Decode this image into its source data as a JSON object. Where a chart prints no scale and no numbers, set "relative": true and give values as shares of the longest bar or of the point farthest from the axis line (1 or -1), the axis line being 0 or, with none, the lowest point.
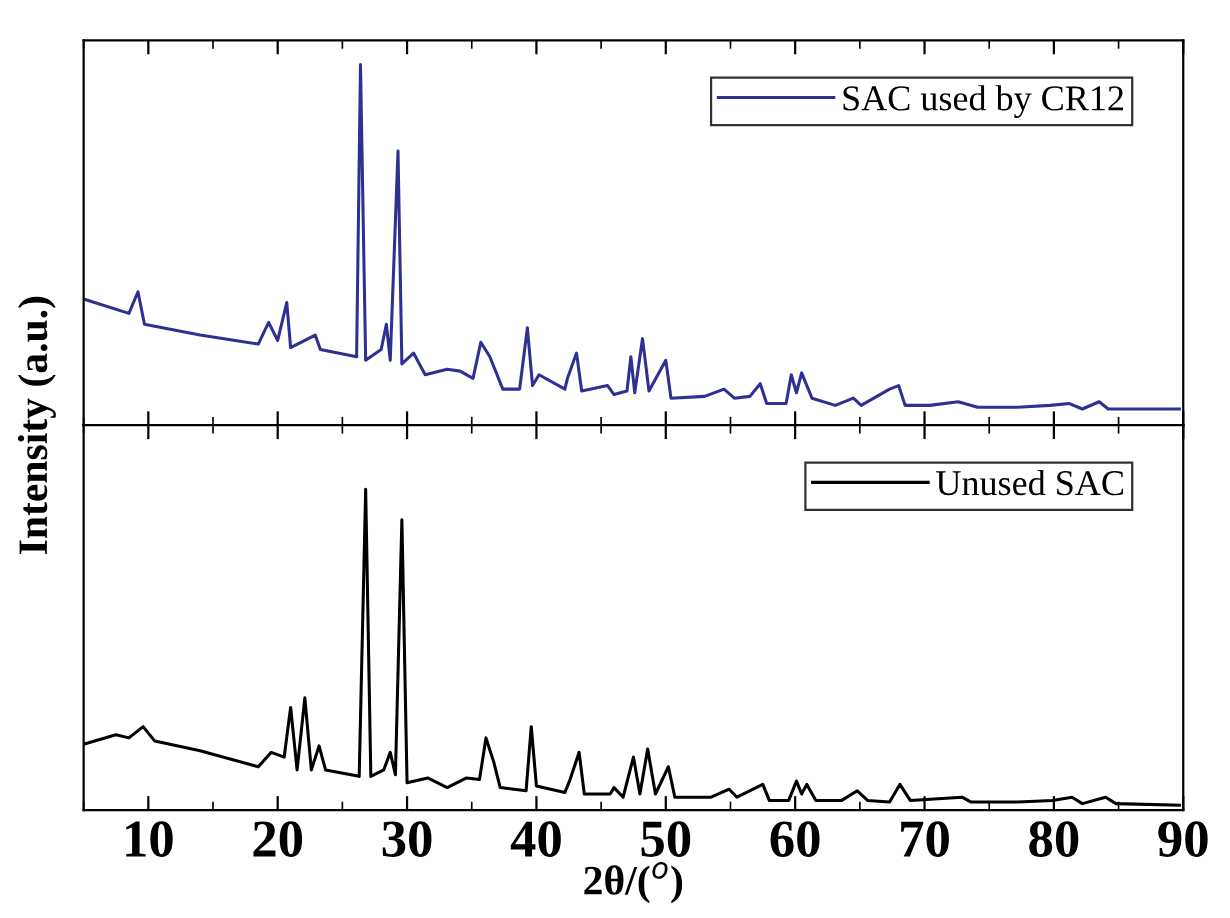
{
  "chart_data": [
    {
      "type": "line",
      "relative": true,
      "ylabel": "Intensity (a.u.)",
      "xlim": [
        5,
        90
      ],
      "xticks": [
        10,
        20,
        30,
        40,
        50,
        60,
        70,
        80,
        90
      ],
      "tick_labels": false,
      "legend": "top right",
      "grid": false,
      "series": [
        {
          "name": "SAC used by CR12",
          "color": "#2e3192",
          "x": [
            5,
            8.5,
            9.2,
            9.7,
            14.0,
            18.5,
            19.3,
            20.0,
            20.7,
            21.0,
            22.9,
            23.3,
            26.1,
            26.4,
            26.8,
            28.0,
            28.4,
            28.7,
            29.3,
            29.6,
            30.5,
            31.4,
            33.1,
            34.1,
            35.1,
            35.7,
            36.4,
            37.4,
            38.7,
            39.3,
            39.7,
            40.2,
            42.2,
            42.4,
            43.1,
            43.5,
            45.5,
            46.0,
            47.0,
            47.3,
            47.6,
            48.2,
            48.7,
            50.0,
            50.4,
            53.0,
            54.5,
            55.3,
            56.5,
            57.3,
            57.8,
            59.3,
            59.7,
            60.1,
            60.5,
            61.3,
            63.1,
            64.5,
            65.1,
            67.3,
            68.0,
            68.5,
            70.4,
            72.6,
            74.1,
            77.2,
            79.7,
            81.2,
            82.2,
            83.5,
            84.2,
            87.2,
            89.7
          ],
          "values": [
            0.35,
            0.31,
            0.37,
            0.28,
            0.25,
            0.225,
            0.285,
            0.235,
            0.34,
            0.215,
            0.25,
            0.21,
            0.19,
            1.0,
            0.18,
            0.21,
            0.28,
            0.18,
            0.76,
            0.17,
            0.2,
            0.14,
            0.155,
            0.15,
            0.13,
            0.23,
            0.19,
            0.1,
            0.1,
            0.27,
            0.11,
            0.14,
            0.1,
            0.13,
            0.2,
            0.095,
            0.11,
            0.085,
            0.095,
            0.19,
            0.09,
            0.24,
            0.095,
            0.18,
            0.075,
            0.08,
            0.1,
            0.075,
            0.08,
            0.115,
            0.06,
            0.06,
            0.14,
            0.09,
            0.145,
            0.075,
            0.055,
            0.075,
            0.055,
            0.1,
            0.11,
            0.055,
            0.055,
            0.065,
            0.05,
            0.05,
            0.055,
            0.06,
            0.045,
            0.065,
            0.045,
            0.045,
            0.045
          ]
        }
      ]
    },
    {
      "type": "line",
      "relative": true,
      "xlabel": "2θ/($^{o}$)",
      "xlim": [
        5,
        90
      ],
      "xticks": [
        10,
        20,
        30,
        40,
        50,
        60,
        70,
        80,
        90
      ],
      "tick_labels": "x",
      "legend": "top right",
      "grid": false,
      "series": [
        {
          "name": "Unused SAC",
          "color": "#000000",
          "x": [
            5,
            7.5,
            8.5,
            9.6,
            10.5,
            14.0,
            18.5,
            19.5,
            20.5,
            21.0,
            21.5,
            22.1,
            22.6,
            23.2,
            23.7,
            26.3,
            26.8,
            27.2,
            28.2,
            28.7,
            29.1,
            29.6,
            30.0,
            31.6,
            33.1,
            34.6,
            35.6,
            36.1,
            36.7,
            37.2,
            39.2,
            39.6,
            40.0,
            42.2,
            42.6,
            43.3,
            43.7,
            45.7,
            46.0,
            46.7,
            47.5,
            48.0,
            48.6,
            49.2,
            50.2,
            50.7,
            53.5,
            54.9,
            55.5,
            57.5,
            58.0,
            59.5,
            60.1,
            60.5,
            60.9,
            61.6,
            63.6,
            64.8,
            65.6,
            67.3,
            68.1,
            68.9,
            72.9,
            73.6,
            77.2,
            79.9,
            81.4,
            82.2,
            84.0,
            84.8,
            89.7
          ],
          "values": [
            0.205,
            0.235,
            0.225,
            0.26,
            0.215,
            0.185,
            0.135,
            0.18,
            0.165,
            0.32,
            0.125,
            0.35,
            0.125,
            0.2,
            0.125,
            0.105,
            1.0,
            0.105,
            0.125,
            0.18,
            0.11,
            0.905,
            0.085,
            0.1,
            0.07,
            0.1,
            0.095,
            0.225,
            0.15,
            0.07,
            0.06,
            0.26,
            0.075,
            0.055,
            0.095,
            0.18,
            0.05,
            0.05,
            0.07,
            0.04,
            0.165,
            0.05,
            0.19,
            0.05,
            0.135,
            0.04,
            0.04,
            0.065,
            0.04,
            0.08,
            0.03,
            0.03,
            0.09,
            0.05,
            0.08,
            0.03,
            0.03,
            0.06,
            0.03,
            0.025,
            0.08,
            0.03,
            0.04,
            0.025,
            0.025,
            0.03,
            0.04,
            0.02,
            0.04,
            0.02,
            0.015
          ]
        }
      ]
    }
  ]
}
